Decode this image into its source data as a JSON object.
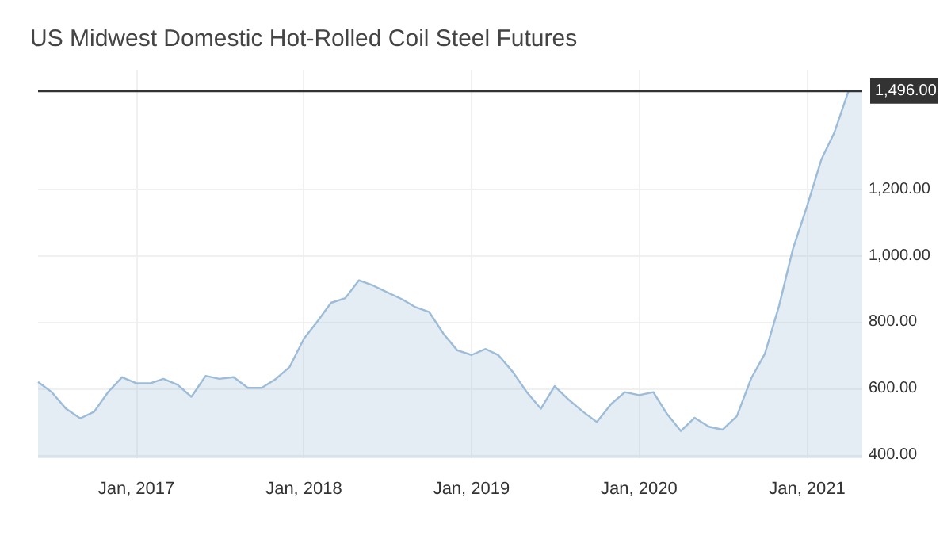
{
  "chart_data": {
    "type": "area",
    "title": "US Midwest Domestic Hot-Rolled Coil Steel Futures",
    "x": [
      "2016-06",
      "2016-07",
      "2016-08",
      "2016-09",
      "2016-10",
      "2016-11",
      "2016-12",
      "2017-01",
      "2017-02",
      "2017-03",
      "2017-04",
      "2017-05",
      "2017-06",
      "2017-07",
      "2017-08",
      "2017-09",
      "2017-10",
      "2017-11",
      "2017-12",
      "2018-01",
      "2018-02",
      "2018-03",
      "2018-04",
      "2018-05",
      "2018-06",
      "2018-07",
      "2018-08",
      "2018-09",
      "2018-10",
      "2018-11",
      "2018-12",
      "2019-01",
      "2019-02",
      "2019-03",
      "2019-04",
      "2019-05",
      "2019-06",
      "2019-07",
      "2019-08",
      "2019-09",
      "2019-10",
      "2019-11",
      "2019-12",
      "2020-01",
      "2020-02",
      "2020-03",
      "2020-04",
      "2020-05",
      "2020-06",
      "2020-07",
      "2020-08",
      "2020-09",
      "2020-10",
      "2020-11",
      "2020-12",
      "2021-01",
      "2021-02",
      "2021-03",
      "2021-04",
      "2021-05"
    ],
    "series": [
      {
        "color": "#9dbcd8",
        "values": [
          620,
          589,
          539,
          510,
          530,
          590,
          634,
          616,
          616,
          629,
          611,
          575,
          638,
          629,
          634,
          602,
          602,
          629,
          665,
          750,
          805,
          858,
          872,
          926,
          910,
          890,
          870,
          845,
          830,
          765,
          715,
          701,
          719,
          700,
          650,
          590,
          539,
          607,
          566,
          530,
          499,
          553,
          589,
          580,
          589,
          525,
          472,
          512,
          485,
          476,
          517,
          630,
          705,
          850,
          1020,
          1150,
          1290,
          1370,
          1496,
          1496
        ]
      }
    ],
    "xlim": [
      "2016-06",
      "2021-05"
    ],
    "xticks": [
      {
        "value": "2017-01",
        "label": "Jan, 2017"
      },
      {
        "value": "2018-01",
        "label": "Jan, 2018"
      },
      {
        "value": "2019-01",
        "label": "Jan, 2019"
      },
      {
        "value": "2020-01",
        "label": "Jan, 2020"
      },
      {
        "value": "2021-01",
        "label": "Jan, 2021"
      }
    ],
    "ylim": [
      390,
      1560
    ],
    "yticks": [
      {
        "value": 400,
        "label": "400.00"
      },
      {
        "value": 600,
        "label": "600.00"
      },
      {
        "value": 800,
        "label": "800.00"
      },
      {
        "value": 1000,
        "label": "1,000.00"
      },
      {
        "value": 1200,
        "label": "1,200.00"
      }
    ],
    "ref_lines": [
      {
        "axis": "y",
        "value": 1496,
        "label": "1,496.00",
        "color": "#333333"
      }
    ],
    "grid": true,
    "marker": "none"
  }
}
